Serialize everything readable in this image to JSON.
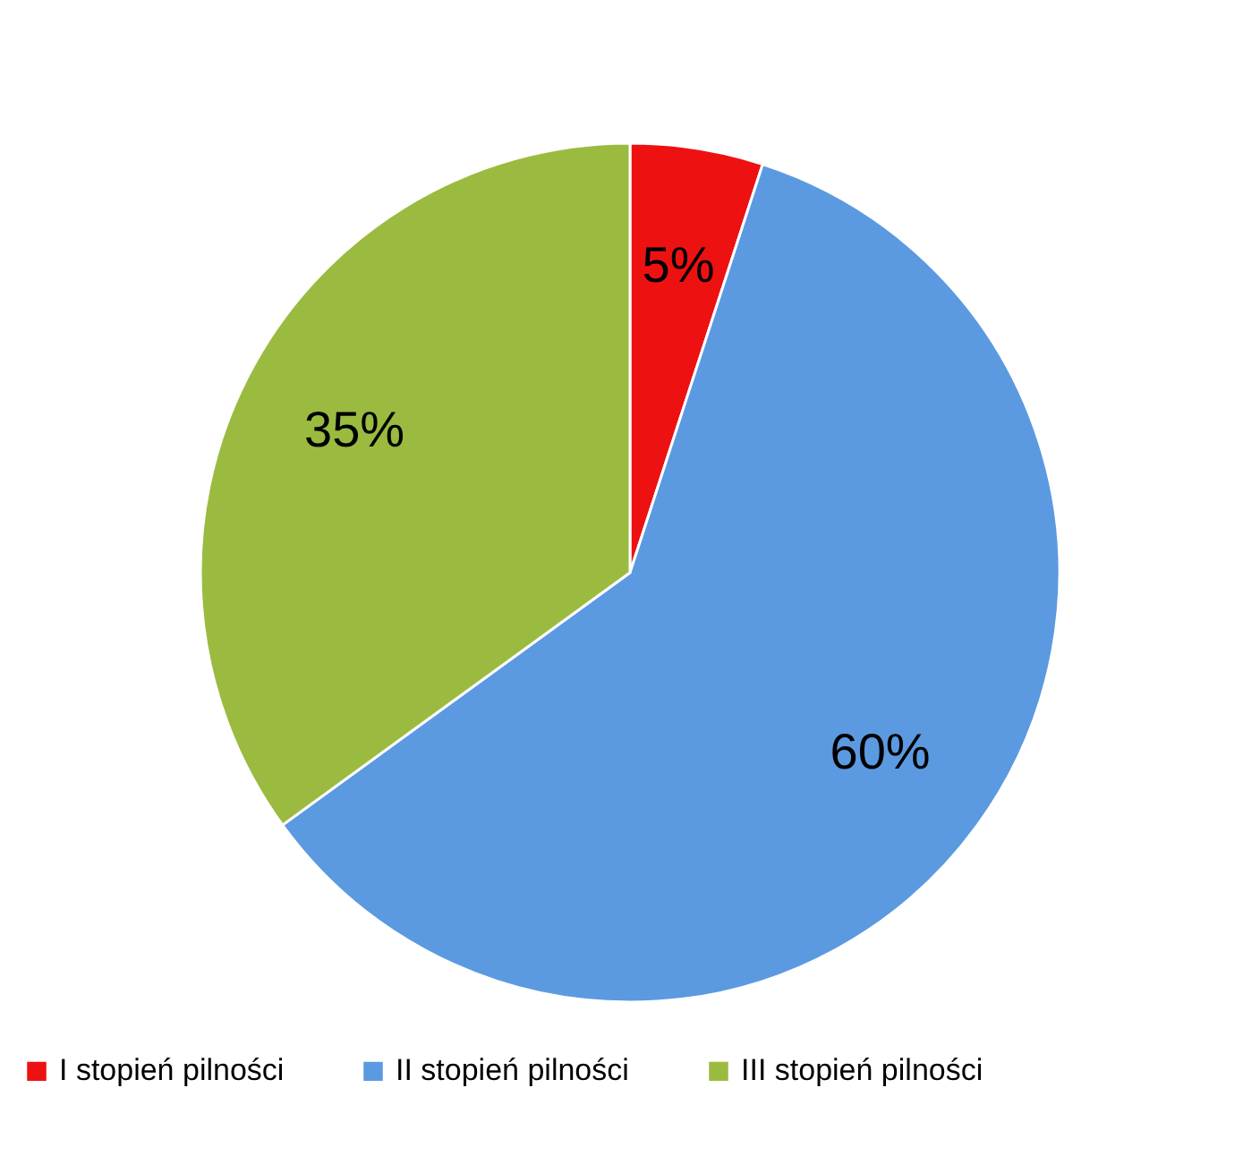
{
  "chart_data": {
    "type": "pie",
    "categories": [
      "I stopień pilności",
      "II stopień pilności",
      "III stopień pilności"
    ],
    "values": [
      5,
      60,
      35
    ],
    "colors": [
      "#ee1111",
      "#5b9ae0",
      "#9bbb40"
    ],
    "value_labels": [
      "5%",
      "60%",
      "35%"
    ],
    "legend": "bottom"
  }
}
